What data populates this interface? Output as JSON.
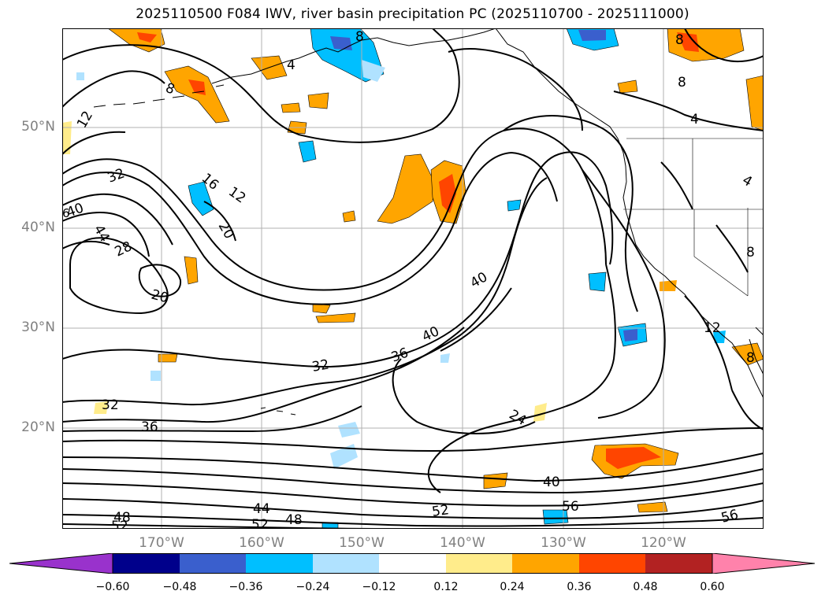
{
  "title": "2025110500 F084 IWV, river basin precipitation PC (2025110700 - 2025111000)",
  "map": {
    "lat_ticks": [
      "50°N",
      "40°N",
      "30°N",
      "20°N"
    ],
    "lon_ticks": [
      "170°W",
      "160°W",
      "150°W",
      "140°W",
      "130°W",
      "120°W"
    ],
    "grid_color": "#b0b0b0",
    "contour_labels": [
      {
        "text": "12"
      },
      {
        "text": "32"
      },
      {
        "text": "40"
      },
      {
        "text": "44"
      },
      {
        "text": "28"
      },
      {
        "text": "20"
      },
      {
        "text": "16"
      },
      {
        "text": "12"
      },
      {
        "text": "20"
      },
      {
        "text": "8"
      },
      {
        "text": "8"
      },
      {
        "text": "4"
      },
      {
        "text": "40"
      },
      {
        "text": "40"
      },
      {
        "text": "36"
      },
      {
        "text": "32"
      },
      {
        "text": "32"
      },
      {
        "text": "36"
      },
      {
        "text": "24"
      },
      {
        "text": "40"
      },
      {
        "text": "56"
      },
      {
        "text": "52"
      },
      {
        "text": "48"
      },
      {
        "text": "52"
      },
      {
        "text": "44"
      },
      {
        "text": "52"
      },
      {
        "text": "48"
      },
      {
        "text": "56"
      },
      {
        "text": "8"
      },
      {
        "text": "4"
      },
      {
        "text": "8"
      },
      {
        "text": "8"
      },
      {
        "text": "12"
      },
      {
        "text": "8"
      },
      {
        "text": "4"
      },
      {
        "text": "6"
      }
    ]
  },
  "colorbar": {
    "labels": [
      "−0.60",
      "−0.48",
      "−0.36",
      "−0.24",
      "−0.12",
      "0.12",
      "0.24",
      "0.36",
      "0.48",
      "0.60"
    ],
    "colors": [
      "#9932cc",
      "#00008b",
      "#3a5fcd",
      "#00bfff",
      "#b0e2ff",
      "#ffffff",
      "#ffec8b",
      "#ffa500",
      "#ff4500",
      "#b22222",
      "#ff82ab"
    ]
  }
}
